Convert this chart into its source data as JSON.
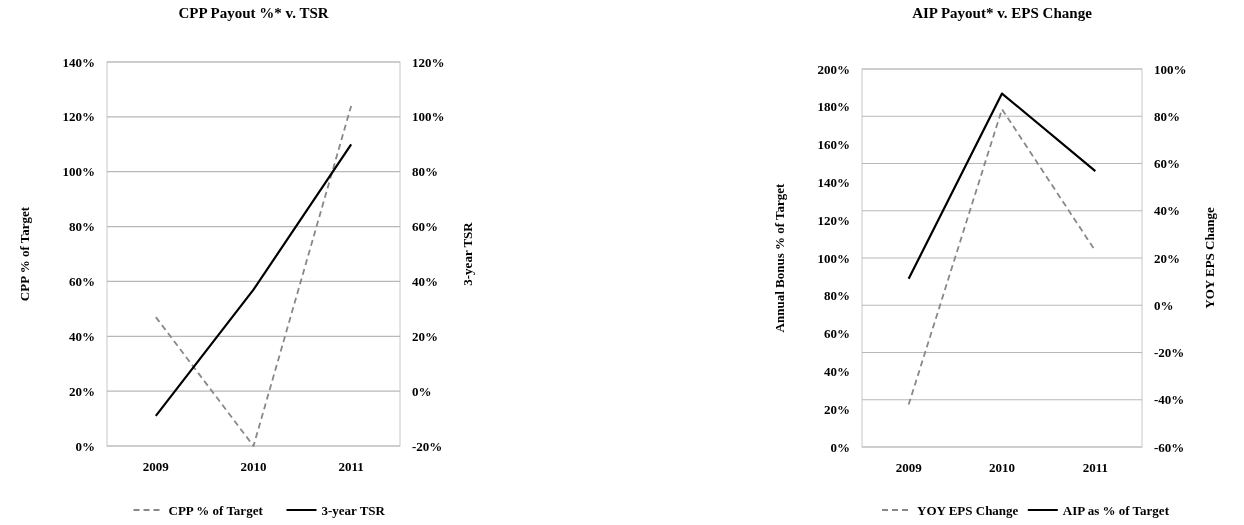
{
  "chart_data": [
    {
      "type": "line",
      "title": "CPP Payout %* v. TSR",
      "ylabel": "CPP % of Target",
      "y2label": "3-year TSR",
      "categories": [
        "2009",
        "2010",
        "2011"
      ],
      "series": [
        {
          "name": "CPP % of Target",
          "color": "#888888",
          "line_style": "dashed",
          "values": [
            47,
            0,
            124
          ]
        },
        {
          "name": "3-year TSR",
          "color": "#000000",
          "line_style": "solid",
          "axis": "y2",
          "values": [
            -9,
            37,
            90
          ]
        }
      ],
      "ylim": [
        0,
        140
      ],
      "yticks": [
        {
          "value": 0,
          "label": "0%"
        },
        {
          "value": 20,
          "label": "20%"
        },
        {
          "value": 40,
          "label": "40%"
        },
        {
          "value": 60,
          "label": "60%"
        },
        {
          "value": 80,
          "label": "80%"
        },
        {
          "value": 100,
          "label": "100%"
        },
        {
          "value": 120,
          "label": "120%"
        },
        {
          "value": 140,
          "label": "140%"
        }
      ],
      "y2lim": [
        -20,
        120
      ],
      "y2ticks": [
        {
          "value": -20,
          "label": "-20%"
        },
        {
          "value": 0,
          "label": "0%"
        },
        {
          "value": 20,
          "label": "20%"
        },
        {
          "value": 40,
          "label": "40%"
        },
        {
          "value": 60,
          "label": "60%"
        },
        {
          "value": 80,
          "label": "80%"
        },
        {
          "value": 100,
          "label": "100%"
        },
        {
          "value": 120,
          "label": "120%"
        }
      ],
      "grid": "y",
      "legend": "bottom",
      "marker": "none"
    },
    {
      "type": "line",
      "title": "AIP Payout* v. EPS Change",
      "ylabel": "Annual Bonus % of Target",
      "y2label": "YOY EPS Change",
      "categories": [
        "2009",
        "2010",
        "2011"
      ],
      "series": [
        {
          "name": "YOY EPS Change",
          "color": "#888888",
          "line_style": "dashed",
          "axis": "y2",
          "values": [
            -42,
            83,
            23
          ]
        },
        {
          "name": "AIP as % of Target",
          "color": "#000000",
          "line_style": "solid",
          "values": [
            89,
            187,
            146
          ]
        }
      ],
      "ylim": [
        0,
        200
      ],
      "yticks": [
        {
          "value": 0,
          "label": "0%"
        },
        {
          "value": 20,
          "label": "20%"
        },
        {
          "value": 40,
          "label": "40%"
        },
        {
          "value": 60,
          "label": "60%"
        },
        {
          "value": 80,
          "label": "80%"
        },
        {
          "value": 100,
          "label": "100%"
        },
        {
          "value": 120,
          "label": "120%"
        },
        {
          "value": 140,
          "label": "140%"
        },
        {
          "value": 160,
          "label": "160%"
        },
        {
          "value": 180,
          "label": "180%"
        },
        {
          "value": 200,
          "label": "200%"
        }
      ],
      "y2lim": [
        -60,
        100
      ],
      "y2ticks": [
        {
          "value": -60,
          "label": "-60%"
        },
        {
          "value": -40,
          "label": "-40%"
        },
        {
          "value": -20,
          "label": "-20%"
        },
        {
          "value": 0,
          "label": "0%"
        },
        {
          "value": 20,
          "label": "20%"
        },
        {
          "value": 40,
          "label": "40%"
        },
        {
          "value": 60,
          "label": "60%"
        },
        {
          "value": 80,
          "label": "80%"
        },
        {
          "value": 100,
          "label": "100%"
        }
      ],
      "grid": "y2",
      "legend": "bottom",
      "marker": "none"
    }
  ]
}
